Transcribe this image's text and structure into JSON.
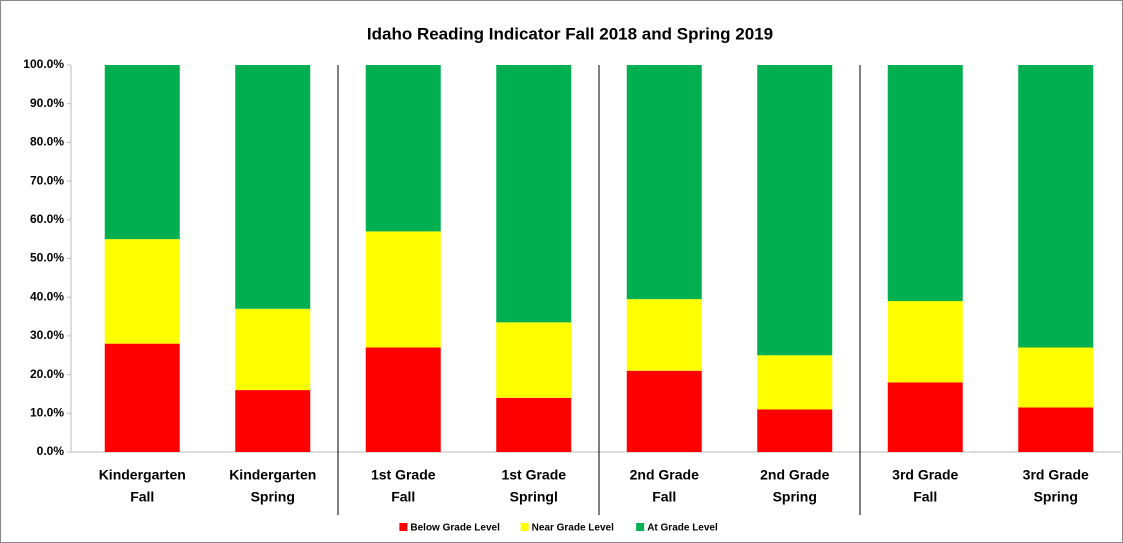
{
  "chart_data": {
    "type": "stacked_bar",
    "title": "Idaho Reading Indicator Fall 2018 and Spring 2019",
    "categories": [
      [
        "Kindergarten",
        "Fall"
      ],
      [
        "Kindergarten",
        "Spring"
      ],
      [
        "1st Grade",
        "Fall"
      ],
      [
        "1st Grade",
        "Springl"
      ],
      [
        "2nd Grade",
        "Fall"
      ],
      [
        "2nd Grade",
        "Spring"
      ],
      [
        "3rd Grade",
        "Fall"
      ],
      [
        "3rd Grade",
        "Spring"
      ]
    ],
    "series": [
      {
        "name": "Below Grade Level",
        "color": "#ff0000",
        "values": [
          28,
          16,
          27,
          14,
          21,
          11,
          18,
          11.5
        ]
      },
      {
        "name": "Near Grade Level",
        "color": "#ffff00",
        "values": [
          27,
          21,
          30,
          19.5,
          18.5,
          14,
          21,
          15.5
        ]
      },
      {
        "name": "At Grade Level",
        "color": "#00b050",
        "values": [
          45,
          63,
          43,
          66.5,
          60.5,
          75,
          61,
          73
        ]
      }
    ],
    "ylim": [
      0,
      100
    ],
    "yticks": [
      {
        "value": 0,
        "label": "0.0%"
      },
      {
        "value": 10,
        "label": "10.0%"
      },
      {
        "value": 20,
        "label": "20.0%"
      },
      {
        "value": 30,
        "label": "30.0%"
      },
      {
        "value": 40,
        "label": "40.0%"
      },
      {
        "value": 50,
        "label": "50.0%"
      },
      {
        "value": 60,
        "label": "60.0%"
      },
      {
        "value": 70,
        "label": "70.0%"
      },
      {
        "value": 80,
        "label": "80.0%"
      },
      {
        "value": 90,
        "label": "90.0%"
      },
      {
        "value": 100,
        "label": "100.0%"
      }
    ],
    "legend": "bottom"
  }
}
